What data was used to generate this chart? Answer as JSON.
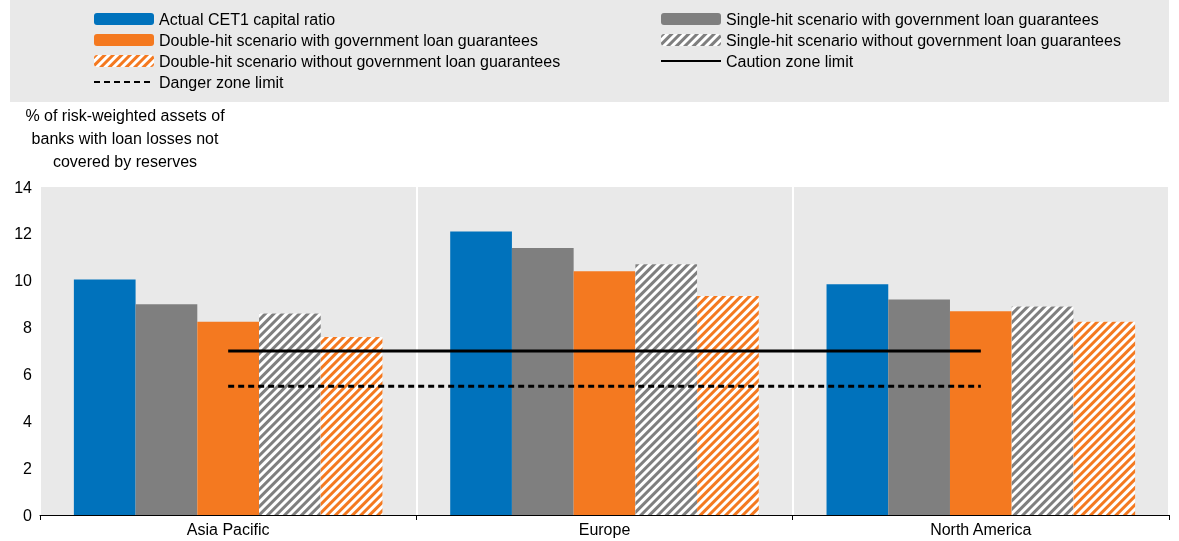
{
  "chart_data": {
    "type": "bar",
    "ylabel": "% of risk-weighted assets of banks with loan losses not covered by reserves",
    "categories": [
      "Asia Pacific",
      "Europe",
      "North America"
    ],
    "series": [
      {
        "name": "Actual CET1 capital ratio",
        "color": "#0072bc",
        "values": [
          10.05,
          12.1,
          9.85
        ]
      },
      {
        "name": "Single-hit scenario with government loan guarantees",
        "color": "#7f7f7f",
        "values": [
          9.0,
          11.4,
          9.2
        ]
      },
      {
        "name": "Double-hit scenario with government loan guarantees",
        "color": "#f47920",
        "values": [
          8.25,
          10.4,
          8.7
        ]
      },
      {
        "name": "Single-hit scenario without government loan guarantees",
        "color": "#7f7f7f",
        "values": [
          8.6,
          10.7,
          8.9
        ]
      },
      {
        "name": "Double-hit scenario without government loan guarantees",
        "color": "#f47920",
        "values": [
          7.6,
          9.35,
          8.25
        ]
      },
      {
        "name": "Caution zone limit",
        "type": "line",
        "color": "#000000",
        "line_style": "solid",
        "values": [
          7,
          7,
          7
        ]
      },
      {
        "name": "Danger zone limit",
        "type": "line",
        "color": "#000000",
        "line_style": "dashed",
        "values": [
          5.5,
          5.5,
          5.5
        ]
      }
    ],
    "ylim": [
      0,
      14
    ],
    "yticks": [
      0,
      2,
      4,
      6,
      8,
      10,
      12,
      14
    ],
    "grid": "x",
    "legend": "top",
    "marker": "none"
  }
}
